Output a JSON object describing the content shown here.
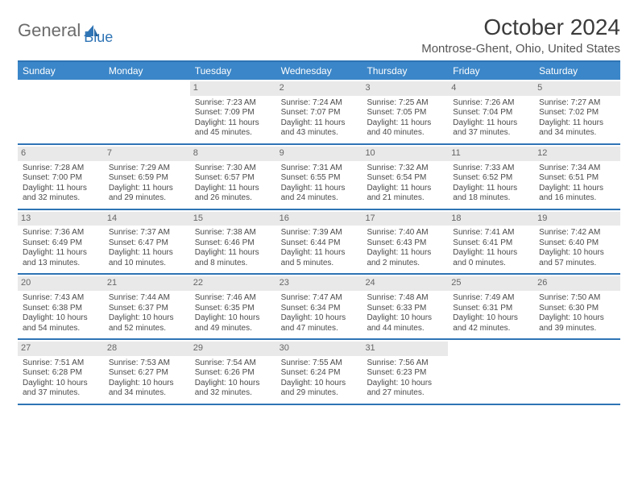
{
  "brand": {
    "part1": "General",
    "part2": "Blue"
  },
  "title": "October 2024",
  "location": "Montrose-Ghent, Ohio, United States",
  "colors": {
    "header_bg": "#3b86c8",
    "accent": "#2f74b5",
    "daynum_bg": "#e9e9e9",
    "text": "#4a4a4a"
  },
  "day_headers": [
    "Sunday",
    "Monday",
    "Tuesday",
    "Wednesday",
    "Thursday",
    "Friday",
    "Saturday"
  ],
  "weeks": [
    [
      {
        "n": "",
        "empty": true
      },
      {
        "n": "",
        "empty": true
      },
      {
        "n": "1",
        "sunrise": "Sunrise: 7:23 AM",
        "sunset": "Sunset: 7:09 PM",
        "d1": "Daylight: 11 hours",
        "d2": "and 45 minutes."
      },
      {
        "n": "2",
        "sunrise": "Sunrise: 7:24 AM",
        "sunset": "Sunset: 7:07 PM",
        "d1": "Daylight: 11 hours",
        "d2": "and 43 minutes."
      },
      {
        "n": "3",
        "sunrise": "Sunrise: 7:25 AM",
        "sunset": "Sunset: 7:05 PM",
        "d1": "Daylight: 11 hours",
        "d2": "and 40 minutes."
      },
      {
        "n": "4",
        "sunrise": "Sunrise: 7:26 AM",
        "sunset": "Sunset: 7:04 PM",
        "d1": "Daylight: 11 hours",
        "d2": "and 37 minutes."
      },
      {
        "n": "5",
        "sunrise": "Sunrise: 7:27 AM",
        "sunset": "Sunset: 7:02 PM",
        "d1": "Daylight: 11 hours",
        "d2": "and 34 minutes."
      }
    ],
    [
      {
        "n": "6",
        "sunrise": "Sunrise: 7:28 AM",
        "sunset": "Sunset: 7:00 PM",
        "d1": "Daylight: 11 hours",
        "d2": "and 32 minutes."
      },
      {
        "n": "7",
        "sunrise": "Sunrise: 7:29 AM",
        "sunset": "Sunset: 6:59 PM",
        "d1": "Daylight: 11 hours",
        "d2": "and 29 minutes."
      },
      {
        "n": "8",
        "sunrise": "Sunrise: 7:30 AM",
        "sunset": "Sunset: 6:57 PM",
        "d1": "Daylight: 11 hours",
        "d2": "and 26 minutes."
      },
      {
        "n": "9",
        "sunrise": "Sunrise: 7:31 AM",
        "sunset": "Sunset: 6:55 PM",
        "d1": "Daylight: 11 hours",
        "d2": "and 24 minutes."
      },
      {
        "n": "10",
        "sunrise": "Sunrise: 7:32 AM",
        "sunset": "Sunset: 6:54 PM",
        "d1": "Daylight: 11 hours",
        "d2": "and 21 minutes."
      },
      {
        "n": "11",
        "sunrise": "Sunrise: 7:33 AM",
        "sunset": "Sunset: 6:52 PM",
        "d1": "Daylight: 11 hours",
        "d2": "and 18 minutes."
      },
      {
        "n": "12",
        "sunrise": "Sunrise: 7:34 AM",
        "sunset": "Sunset: 6:51 PM",
        "d1": "Daylight: 11 hours",
        "d2": "and 16 minutes."
      }
    ],
    [
      {
        "n": "13",
        "sunrise": "Sunrise: 7:36 AM",
        "sunset": "Sunset: 6:49 PM",
        "d1": "Daylight: 11 hours",
        "d2": "and 13 minutes."
      },
      {
        "n": "14",
        "sunrise": "Sunrise: 7:37 AM",
        "sunset": "Sunset: 6:47 PM",
        "d1": "Daylight: 11 hours",
        "d2": "and 10 minutes."
      },
      {
        "n": "15",
        "sunrise": "Sunrise: 7:38 AM",
        "sunset": "Sunset: 6:46 PM",
        "d1": "Daylight: 11 hours",
        "d2": "and 8 minutes."
      },
      {
        "n": "16",
        "sunrise": "Sunrise: 7:39 AM",
        "sunset": "Sunset: 6:44 PM",
        "d1": "Daylight: 11 hours",
        "d2": "and 5 minutes."
      },
      {
        "n": "17",
        "sunrise": "Sunrise: 7:40 AM",
        "sunset": "Sunset: 6:43 PM",
        "d1": "Daylight: 11 hours",
        "d2": "and 2 minutes."
      },
      {
        "n": "18",
        "sunrise": "Sunrise: 7:41 AM",
        "sunset": "Sunset: 6:41 PM",
        "d1": "Daylight: 11 hours",
        "d2": "and 0 minutes."
      },
      {
        "n": "19",
        "sunrise": "Sunrise: 7:42 AM",
        "sunset": "Sunset: 6:40 PM",
        "d1": "Daylight: 10 hours",
        "d2": "and 57 minutes."
      }
    ],
    [
      {
        "n": "20",
        "sunrise": "Sunrise: 7:43 AM",
        "sunset": "Sunset: 6:38 PM",
        "d1": "Daylight: 10 hours",
        "d2": "and 54 minutes."
      },
      {
        "n": "21",
        "sunrise": "Sunrise: 7:44 AM",
        "sunset": "Sunset: 6:37 PM",
        "d1": "Daylight: 10 hours",
        "d2": "and 52 minutes."
      },
      {
        "n": "22",
        "sunrise": "Sunrise: 7:46 AM",
        "sunset": "Sunset: 6:35 PM",
        "d1": "Daylight: 10 hours",
        "d2": "and 49 minutes."
      },
      {
        "n": "23",
        "sunrise": "Sunrise: 7:47 AM",
        "sunset": "Sunset: 6:34 PM",
        "d1": "Daylight: 10 hours",
        "d2": "and 47 minutes."
      },
      {
        "n": "24",
        "sunrise": "Sunrise: 7:48 AM",
        "sunset": "Sunset: 6:33 PM",
        "d1": "Daylight: 10 hours",
        "d2": "and 44 minutes."
      },
      {
        "n": "25",
        "sunrise": "Sunrise: 7:49 AM",
        "sunset": "Sunset: 6:31 PM",
        "d1": "Daylight: 10 hours",
        "d2": "and 42 minutes."
      },
      {
        "n": "26",
        "sunrise": "Sunrise: 7:50 AM",
        "sunset": "Sunset: 6:30 PM",
        "d1": "Daylight: 10 hours",
        "d2": "and 39 minutes."
      }
    ],
    [
      {
        "n": "27",
        "sunrise": "Sunrise: 7:51 AM",
        "sunset": "Sunset: 6:28 PM",
        "d1": "Daylight: 10 hours",
        "d2": "and 37 minutes."
      },
      {
        "n": "28",
        "sunrise": "Sunrise: 7:53 AM",
        "sunset": "Sunset: 6:27 PM",
        "d1": "Daylight: 10 hours",
        "d2": "and 34 minutes."
      },
      {
        "n": "29",
        "sunrise": "Sunrise: 7:54 AM",
        "sunset": "Sunset: 6:26 PM",
        "d1": "Daylight: 10 hours",
        "d2": "and 32 minutes."
      },
      {
        "n": "30",
        "sunrise": "Sunrise: 7:55 AM",
        "sunset": "Sunset: 6:24 PM",
        "d1": "Daylight: 10 hours",
        "d2": "and 29 minutes."
      },
      {
        "n": "31",
        "sunrise": "Sunrise: 7:56 AM",
        "sunset": "Sunset: 6:23 PM",
        "d1": "Daylight: 10 hours",
        "d2": "and 27 minutes."
      },
      {
        "n": "",
        "empty": true
      },
      {
        "n": "",
        "empty": true
      }
    ]
  ]
}
